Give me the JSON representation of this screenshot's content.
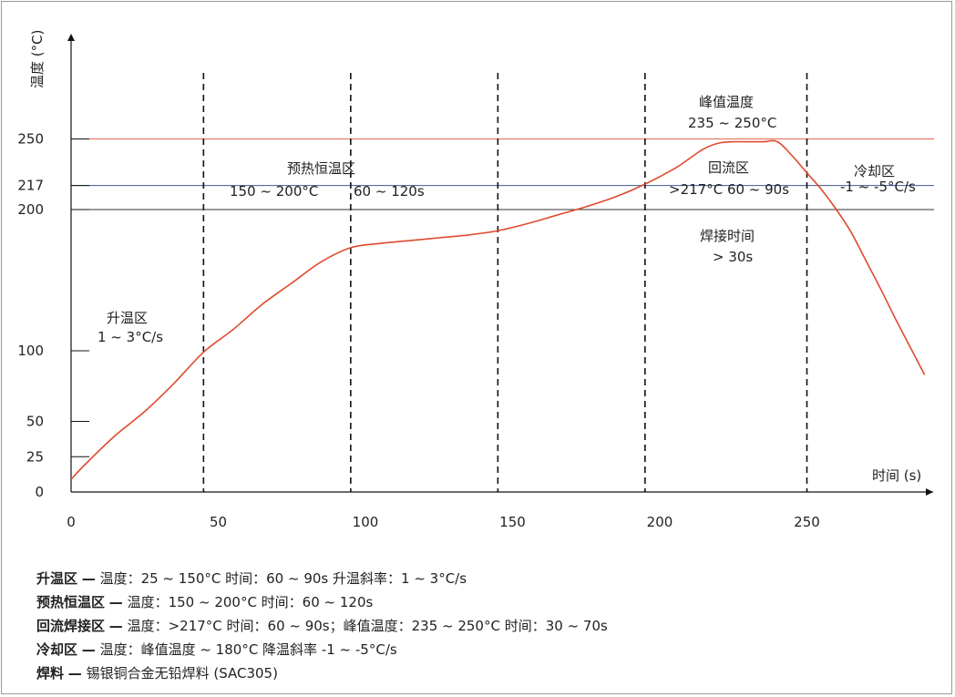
{
  "chart_data": {
    "type": "line",
    "xlabel": "时间 (s)",
    "ylabel": "温度 (°C)",
    "xlim": [
      0,
      290
    ],
    "ylim": [
      0,
      280
    ],
    "x_ticks": [
      0,
      50,
      100,
      150,
      200,
      250
    ],
    "y_ticks": [
      0,
      25,
      50,
      100,
      200,
      217,
      250
    ],
    "vlines": [
      45,
      95,
      145,
      195,
      250
    ],
    "hlines": [
      {
        "y": 250,
        "color": "#e06a4e"
      },
      {
        "y": 217,
        "color": "#3b5a9a"
      },
      {
        "y": 200,
        "color": "#333333"
      }
    ],
    "series": [
      {
        "color": "#e04a2e",
        "x": [
          0,
          5,
          15,
          25,
          35,
          45,
          55,
          65,
          75,
          85,
          95,
          105,
          115,
          125,
          135,
          145,
          155,
          165,
          175,
          185,
          195,
          205,
          210,
          215,
          220,
          225,
          230,
          235,
          240,
          245,
          250,
          255,
          260,
          265,
          270,
          275,
          280,
          285,
          290
        ],
        "y": [
          9,
          20,
          40,
          57,
          77,
          99,
          115,
          133,
          148,
          163,
          173,
          176,
          178,
          180,
          182,
          185,
          190,
          196,
          202,
          209,
          218,
          229,
          236,
          243,
          247,
          248,
          248,
          248,
          248,
          238,
          226,
          214,
          200,
          184,
          164,
          144,
          123,
          103,
          83
        ]
      }
    ],
    "annotations": {
      "ramp_title": "升温区",
      "ramp_rate": "1 ~ 3°C/s",
      "soak_title": "预热恒温区",
      "soak_temp": "150 ~ 200°C",
      "soak_time": "60 ~ 120s",
      "peak_title": "峰值温度",
      "peak_range": "235 ~ 250°C",
      "reflow_title": "回流区",
      "reflow_detail": ">217°C  60 ~ 90s",
      "tal_title": "焊接时间",
      "tal_value": "> 30s",
      "cool_title": "冷却区",
      "cool_rate": "-1 ~ -5°C/s"
    }
  },
  "notes": [
    {
      "label": "升温区",
      "text": "温度：25 ~ 150°C  时间：60 ~ 90s  升温斜率：1 ~ 3°C/s"
    },
    {
      "label": "预热恒温区",
      "text": "温度：150 ~ 200°C  时间：60 ~ 120s"
    },
    {
      "label": "回流焊接区",
      "text": "温度：>217°C  时间：60 ~ 90s；峰值温度：235 ~ 250°C  时间：30 ~ 70s"
    },
    {
      "label": "冷却区",
      "text": "温度：峰值温度 ~ 180°C  降温斜率 -1 ~ -5°C/s"
    },
    {
      "label": "焊料",
      "text": "锡银铜合金无铅焊料 (SAC305)"
    }
  ],
  "note_dash": "—"
}
